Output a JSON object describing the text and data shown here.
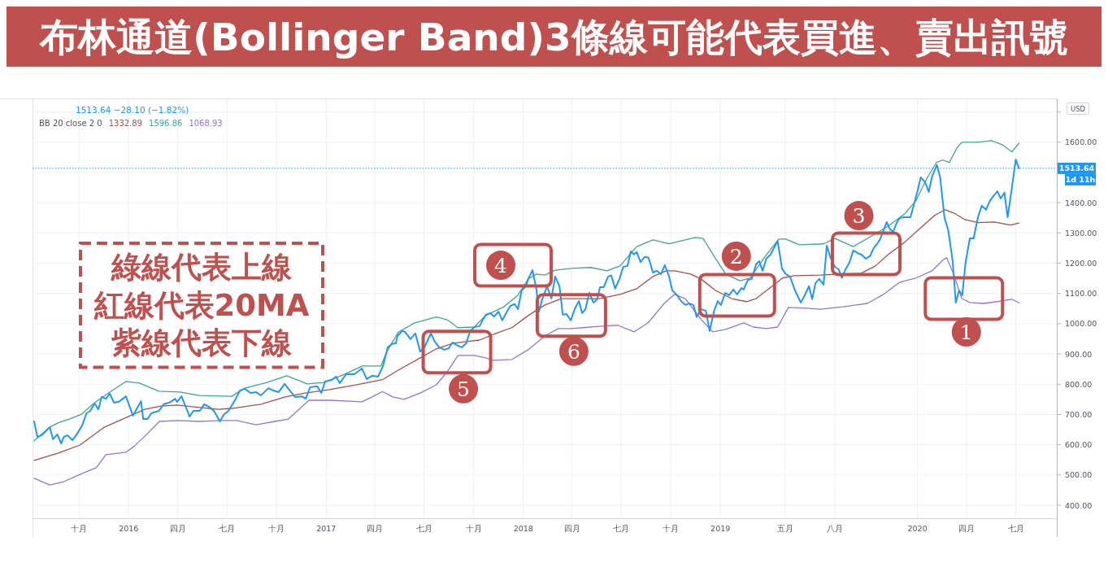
{
  "chart_data": {
    "type": "line",
    "title": "布林通道(Bollinger Band)3條線可能代表買進、賣出訊號",
    "ylabel": "USD",
    "xlim": [
      "2015-07-07",
      "2020-09-15"
    ],
    "xticks": [
      {
        "value": "2015-10-01",
        "label": "十月"
      },
      {
        "value": "2016-01-01",
        "label": "2016"
      },
      {
        "value": "2016-04-01",
        "label": "四月"
      },
      {
        "value": "2016-07-01",
        "label": "七月"
      },
      {
        "value": "2016-10-01",
        "label": "十月"
      },
      {
        "value": "2017-01-01",
        "label": "2017"
      },
      {
        "value": "2017-04-01",
        "label": "四月"
      },
      {
        "value": "2017-07-01",
        "label": "七月"
      },
      {
        "value": "2017-10-01",
        "label": "十月"
      },
      {
        "value": "2018-01-01",
        "label": "2018"
      },
      {
        "value": "2018-04-01",
        "label": "四月"
      },
      {
        "value": "2018-07-01",
        "label": "七月"
      },
      {
        "value": "2018-10-01",
        "label": "十月"
      },
      {
        "value": "2019-01-01",
        "label": "2019"
      },
      {
        "value": "2019-05-01",
        "label": "五月"
      },
      {
        "value": "2019-08-01",
        "label": "八月"
      },
      {
        "value": "2020-01-01",
        "label": "2020"
      },
      {
        "value": "2020-04-01",
        "label": "四月"
      },
      {
        "value": "2020-07-01",
        "label": "七月"
      }
    ],
    "ylim": [
      357,
      1742
    ],
    "yticks": [
      {
        "value": 400,
        "label": "400.00"
      },
      {
        "value": 500,
        "label": "500.00"
      },
      {
        "value": 600,
        "label": "600.00"
      },
      {
        "value": 700,
        "label": "700.00"
      },
      {
        "value": 800,
        "label": "800.00"
      },
      {
        "value": 900,
        "label": "900.00"
      },
      {
        "value": 1000,
        "label": "1000.00"
      },
      {
        "value": 1100,
        "label": "1100.00"
      },
      {
        "value": 1200,
        "label": "1200.00"
      },
      {
        "value": 1300,
        "label": "1300.00"
      },
      {
        "value": 1400,
        "label": "1400.00"
      },
      {
        "value": 1500,
        "label": null
      },
      {
        "value": 1600,
        "label": "1600.00"
      },
      {
        "value": 1700,
        "label": null
      }
    ],
    "grid": true,
    "ref_lines": [
      {
        "axis": "y",
        "value": 1513.64,
        "label": "1513.64",
        "color": "#2196f3",
        "line_style": "dotted"
      }
    ],
    "annotations": [
      "1513.64 −28.10 (−1.82%)",
      "BB 20 close 2 0",
      "1332.89",
      "1596.86",
      "1068.93",
      "綠線代表上線",
      "紅線代表20MA",
      "紫線代表下線",
      "1d 11h",
      {
        "text": "1",
        "x": "2020-03-27",
        "y": 1083
      },
      {
        "text": "2",
        "x": "2019-02-01",
        "y": 1094
      },
      {
        "text": "3",
        "x": "2019-09-28",
        "y": 1231
      },
      {
        "text": "4",
        "x": "2018-01-18",
        "y": 1177
      },
      {
        "text": "5",
        "x": "2017-08-31",
        "y": 906
      },
      {
        "text": "6",
        "x": "2018-03-31",
        "y": 1027
      }
    ],
    "series": [
      {
        "color": "#3fa58c",
        "x": [
          "2015-07-10",
          "2015-08-08",
          "2015-08-23",
          "2015-09-13",
          "2015-10-06",
          "2015-10-28",
          "2015-11-27",
          "2015-12-27",
          "2016-01-21",
          "2016-02-26",
          "2016-04-05",
          "2016-05-11",
          "2016-07-10",
          "2016-08-03",
          "2016-09-13",
          "2016-10-20",
          "2016-11-27",
          "2016-12-27",
          "2017-01-31",
          "2017-03-09",
          "2017-04-12",
          "2017-04-25",
          "2017-05-15",
          "2017-06-14",
          "2017-07-24",
          "2017-08-13",
          "2017-09-02",
          "2017-10-02",
          "2017-10-23",
          "2017-11-26",
          "2017-12-22",
          "2018-01-10",
          "2018-01-25",
          "2018-02-10",
          "2018-03-01",
          "2018-03-31",
          "2018-05-06",
          "2018-06-05",
          "2018-06-29",
          "2018-07-30",
          "2018-08-29",
          "2018-09-28",
          "2018-10-28",
          "2018-11-15",
          "2018-11-30",
          "2018-12-11",
          "2018-12-23",
          "2019-01-11",
          "2019-02-06",
          "2019-02-25",
          "2019-03-23",
          "2019-04-19",
          "2019-05-02",
          "2019-05-27",
          "2019-07-11",
          "2019-08-01",
          "2019-09-04",
          "2019-10-09",
          "2019-11-08",
          "2019-12-08",
          "2019-12-29",
          "2020-01-18",
          "2020-02-05",
          "2020-02-17",
          "2020-02-29",
          "2020-03-14",
          "2020-03-23",
          "2020-04-22",
          "2020-05-17",
          "2020-06-06",
          "2020-06-24",
          "2020-07-07"
        ],
        "values": [
          613,
          658,
          672,
          685,
          701,
          736,
          774,
          809,
          804,
          777,
          774,
          763,
          760,
          787,
          806,
          828,
          801,
          806,
          830,
          860,
          860,
          914,
          973,
          1003,
          1022,
          1013,
          987,
          989,
          1027,
          1056,
          1094,
          1148,
          1164,
          1161,
          1177,
          1183,
          1186,
          1175,
          1191,
          1255,
          1277,
          1264,
          1277,
          1285,
          1282,
          1250,
          1215,
          1164,
          1142,
          1151,
          1218,
          1280,
          1280,
          1261,
          1264,
          1282,
          1255,
          1291,
          1323,
          1363,
          1406,
          1479,
          1533,
          1541,
          1533,
          1581,
          1600,
          1600,
          1605,
          1592,
          1568,
          1596.86
        ]
      },
      {
        "color": "#a3504c",
        "x": [
          "2015-07-10",
          "2015-08-23",
          "2015-10-03",
          "2015-11-17",
          "2015-12-21",
          "2016-01-31",
          "2016-03-01",
          "2016-03-31",
          "2016-04-30",
          "2016-06-15",
          "2016-07-10",
          "2016-09-02",
          "2016-10-17",
          "2016-11-23",
          "2017-01-07",
          "2017-02-25",
          "2017-04-15",
          "2017-05-15",
          "2017-06-24",
          "2017-07-24",
          "2017-08-23",
          "2017-09-17",
          "2017-10-12",
          "2017-11-11",
          "2017-12-11",
          "2018-01-10",
          "2018-02-10",
          "2018-03-12",
          "2018-04-21",
          "2018-05-21",
          "2018-06-29",
          "2018-07-30",
          "2018-08-29",
          "2018-09-23",
          "2018-10-08",
          "2018-11-07",
          "2018-11-26",
          "2018-12-23",
          "2019-01-22",
          "2019-02-18",
          "2019-03-08",
          "2019-04-07",
          "2019-04-26",
          "2019-05-18",
          "2019-07-06",
          "2019-08-10",
          "2019-09-19",
          "2019-10-15",
          "2019-11-08",
          "2019-12-08",
          "2020-01-07",
          "2020-02-02",
          "2020-02-21",
          "2020-03-08",
          "2020-03-29",
          "2020-04-22",
          "2020-05-22",
          "2020-06-21",
          "2020-07-07"
        ],
        "values": [
          548,
          572,
          599,
          658,
          685,
          717,
          728,
          731,
          725,
          717,
          720,
          734,
          758,
          771,
          782,
          798,
          815,
          847,
          887,
          917,
          935,
          941,
          946,
          968,
          987,
          1027,
          1062,
          1083,
          1083,
          1083,
          1097,
          1116,
          1156,
          1175,
          1175,
          1164,
          1148,
          1110,
          1083,
          1073,
          1083,
          1124,
          1151,
          1159,
          1161,
          1164,
          1167,
          1191,
          1229,
          1269,
          1317,
          1358,
          1377,
          1366,
          1344,
          1334,
          1336,
          1326,
          1332.89
        ]
      },
      {
        "color": "#9575cd",
        "x": [
          "2015-07-10",
          "2015-08-08",
          "2015-09-03",
          "2015-10-03",
          "2015-11-02",
          "2015-11-20",
          "2015-12-27",
          "2016-01-12",
          "2016-02-05",
          "2016-02-27",
          "2016-03-31",
          "2016-05-11",
          "2016-06-19",
          "2016-07-19",
          "2016-08-24",
          "2016-09-28",
          "2016-10-23",
          "2016-11-30",
          "2017-01-07",
          "2017-03-08",
          "2017-03-27",
          "2017-04-15",
          "2017-05-04",
          "2017-05-25",
          "2017-06-24",
          "2017-07-24",
          "2017-08-13",
          "2017-09-02",
          "2017-10-02",
          "2017-10-23",
          "2017-11-07",
          "2017-12-11",
          "2018-01-10",
          "2018-02-10",
          "2018-03-07",
          "2018-03-31",
          "2018-04-21",
          "2018-05-26",
          "2018-06-25",
          "2018-07-25",
          "2018-08-20",
          "2018-09-19",
          "2018-10-08",
          "2018-10-28",
          "2018-11-27",
          "2018-12-18",
          "2019-01-11",
          "2019-02-13",
          "2019-03-03",
          "2019-03-27",
          "2019-04-17",
          "2019-05-07",
          "2019-06-11",
          "2019-07-06",
          "2019-08-16",
          "2019-09-09",
          "2019-09-30",
          "2019-10-30",
          "2019-11-29",
          "2019-12-29",
          "2020-01-28",
          "2020-02-17",
          "2020-02-24",
          "2020-03-08",
          "2020-03-23",
          "2020-04-07",
          "2020-05-02",
          "2020-05-28",
          "2020-06-24",
          "2020-07-07"
        ],
        "values": [
          489,
          467,
          478,
          502,
          524,
          567,
          575,
          596,
          637,
          677,
          680,
          677,
          680,
          680,
          666,
          677,
          685,
          747,
          747,
          742,
          758,
          776,
          758,
          750,
          771,
          798,
          841,
          895,
          895,
          887,
          879,
          882,
          914,
          960,
          984,
          984,
          987,
          992,
          995,
          973,
          1003,
          1067,
          1097,
          1083,
          1013,
          973,
          981,
          1003,
          989,
          984,
          989,
          1054,
          1051,
          1048,
          1056,
          1062,
          1067,
          1097,
          1137,
          1151,
          1175,
          1210,
          1218,
          1164,
          1083,
          1070,
          1067,
          1073,
          1081,
          1068.93
        ]
      },
      {
        "color": "#2196f3",
        "x": [
          "2015-07-10",
          "2015-07-16",
          "2015-07-24",
          "2015-08-08",
          "2015-08-14",
          "2015-08-22",
          "2015-08-29",
          "2015-09-03",
          "2015-09-10",
          "2015-09-19",
          "2015-09-28",
          "2015-10-07",
          "2015-10-15",
          "2015-10-22",
          "2015-10-30",
          "2015-11-06",
          "2015-11-12",
          "2015-11-20",
          "2015-11-27",
          "2015-12-05",
          "2015-12-14",
          "2015-12-27",
          "2016-01-09",
          "2016-01-24",
          "2016-01-28",
          "2016-02-05",
          "2016-02-12",
          "2016-02-26",
          "2016-03-06",
          "2016-03-16",
          "2016-03-21",
          "2016-03-27",
          "2016-03-31",
          "2016-04-08",
          "2016-04-23",
          "2016-04-30",
          "2016-05-12",
          "2016-05-20",
          "2016-05-31",
          "2016-06-07",
          "2016-06-18",
          "2016-06-25",
          "2016-07-04",
          "2016-07-15",
          "2016-07-25",
          "2016-08-03",
          "2016-08-14",
          "2016-08-24",
          "2016-09-02",
          "2016-09-16",
          "2016-09-25",
          "2016-10-05",
          "2016-10-16",
          "2016-10-23",
          "2016-11-04",
          "2016-11-17",
          "2016-11-24",
          "2016-12-02",
          "2016-12-15",
          "2016-12-23",
          "2016-12-30",
          "2017-01-11",
          "2017-01-19",
          "2017-01-26",
          "2017-02-07",
          "2017-02-22",
          "2017-03-08",
          "2017-03-17",
          "2017-03-27",
          "2017-04-07",
          "2017-04-16",
          "2017-04-25",
          "2017-05-03",
          "2017-05-10",
          "2017-05-13",
          "2017-05-22",
          "2017-05-27",
          "2017-06-06",
          "2017-06-15",
          "2017-06-24",
          "2017-07-02",
          "2017-07-08",
          "2017-07-14",
          "2017-07-21",
          "2017-07-29",
          "2017-08-08",
          "2017-08-16",
          "2017-08-23",
          "2017-09-02",
          "2017-09-09",
          "2017-09-17",
          "2017-09-24",
          "2017-10-02",
          "2017-10-12",
          "2017-10-18",
          "2017-10-24",
          "2017-11-01",
          "2017-11-08",
          "2017-11-16",
          "2017-11-23",
          "2017-12-01",
          "2017-12-08",
          "2017-12-16",
          "2017-12-22",
          "2017-12-29",
          "2018-01-06",
          "2018-01-10",
          "2018-01-18",
          "2018-01-25",
          "2018-01-30",
          "2018-02-05",
          "2018-02-14",
          "2018-02-22",
          "2018-03-01",
          "2018-03-09",
          "2018-03-15",
          "2018-03-22",
          "2018-03-30",
          "2018-04-06",
          "2018-04-14",
          "2018-04-20",
          "2018-04-26",
          "2018-05-03",
          "2018-05-11",
          "2018-05-18",
          "2018-05-23",
          "2018-05-30",
          "2018-06-07",
          "2018-06-13",
          "2018-06-20",
          "2018-06-28",
          "2018-07-05",
          "2018-07-13",
          "2018-07-19",
          "2018-07-25",
          "2018-07-30",
          "2018-08-06",
          "2018-08-14",
          "2018-08-21",
          "2018-08-29",
          "2018-09-05",
          "2018-09-13",
          "2018-09-20",
          "2018-09-28",
          "2018-10-04",
          "2018-10-13",
          "2018-10-20",
          "2018-10-28",
          "2018-11-04",
          "2018-11-12",
          "2018-11-18",
          "2018-11-26",
          "2018-12-05",
          "2018-12-12",
          "2018-12-20",
          "2018-12-27",
          "2019-01-02",
          "2019-01-10",
          "2019-01-17",
          "2019-01-25",
          "2019-02-01",
          "2019-02-09",
          "2019-02-13",
          "2019-02-21",
          "2019-02-28",
          "2019-03-08",
          "2019-03-14",
          "2019-03-20",
          "2019-03-27",
          "2019-04-04",
          "2019-04-17",
          "2019-04-25",
          "2019-05-02",
          "2019-05-10",
          "2019-05-19",
          "2019-05-30",
          "2019-06-06",
          "2019-06-14",
          "2019-06-20",
          "2019-06-26",
          "2019-07-03",
          "2019-07-11",
          "2019-07-17",
          "2019-07-24",
          "2019-08-01",
          "2019-08-08",
          "2019-08-14",
          "2019-08-20",
          "2019-08-28",
          "2019-09-04",
          "2019-09-15",
          "2019-09-19",
          "2019-09-27",
          "2019-10-05",
          "2019-10-12",
          "2019-10-20",
          "2019-10-24",
          "2019-11-05",
          "2019-11-11",
          "2019-11-17",
          "2019-11-23",
          "2019-11-29",
          "2019-12-08",
          "2019-12-19",
          "2019-12-26",
          "2020-01-01",
          "2020-01-07",
          "2020-01-15",
          "2020-01-22",
          "2020-01-28",
          "2020-02-06",
          "2020-02-12",
          "2020-02-20",
          "2020-02-27",
          "2020-03-06",
          "2020-03-12",
          "2020-03-18",
          "2020-03-24",
          "2020-03-30",
          "2020-04-07",
          "2020-04-14",
          "2020-04-22",
          "2020-04-29",
          "2020-05-07",
          "2020-05-14",
          "2020-05-22",
          "2020-05-28",
          "2020-06-03",
          "2020-06-10",
          "2020-06-16",
          "2020-06-24",
          "2020-07-01",
          "2020-07-07"
        ],
        "values": [
          677,
          626,
          631,
          658,
          618,
          634,
          604,
          626,
          631,
          615,
          637,
          664,
          704,
          712,
          736,
          717,
          758,
          752,
          769,
          739,
          742,
          760,
          696,
          744,
          685,
          685,
          704,
          712,
          734,
          739,
          744,
          752,
          742,
          760,
          693,
          712,
          712,
          734,
          723,
          712,
          677,
          699,
          712,
          744,
          779,
          785,
          771,
          774,
          763,
          787,
          779,
          774,
          801,
          785,
          758,
          760,
          752,
          790,
          793,
          771,
          809,
          814,
          825,
          804,
          833,
          833,
          852,
          817,
          828,
          825,
          860,
          922,
          933,
          935,
          960,
          976,
          973,
          949,
          968,
          908,
          922,
          946,
          968,
          941,
          922,
          914,
          919,
          938,
          927,
          922,
          935,
          973,
          989,
          992,
          1013,
          1030,
          1035,
          1024,
          1040,
          1011,
          1038,
          1059,
          1065,
          1048,
          1110,
          1124,
          1148,
          1177,
          1116,
          1040,
          1081,
          1124,
          1083,
          1156,
          1124,
          1030,
          1032,
          1011,
          1048,
          1075,
          1035,
          1048,
          1102,
          1070,
          1081,
          1121,
          1121,
          1156,
          1159,
          1116,
          1148,
          1188,
          1191,
          1239,
          1229,
          1237,
          1204,
          1221,
          1218,
          1169,
          1175,
          1164,
          1194,
          1156,
          1110,
          1094,
          1075,
          1062,
          1067,
          1062,
          1022,
          1048,
          1043,
          976,
          1040,
          1075,
          1062,
          1102,
          1094,
          1113,
          1097,
          1118,
          1113,
          1145,
          1148,
          1196,
          1207,
          1175,
          1215,
          1229,
          1274,
          1183,
          1164,
          1156,
          1110,
          1070,
          1094,
          1124,
          1081,
          1134,
          1148,
          1129,
          1258,
          1218,
          1188,
          1180,
          1151,
          1177,
          1202,
          1242,
          1231,
          1229,
          1215,
          1223,
          1250,
          1269,
          1280,
          1336,
          1312,
          1304,
          1331,
          1350,
          1352,
          1352,
          1398,
          1438,
          1484,
          1468,
          1436,
          1487,
          1525,
          1484,
          1350,
          1309,
          1210,
          1070,
          1110,
          1094,
          1202,
          1282,
          1282,
          1352,
          1390,
          1377,
          1406,
          1425,
          1438,
          1414,
          1433,
          1352,
          1452,
          1543,
          1513.64
        ]
      }
    ]
  }
}
